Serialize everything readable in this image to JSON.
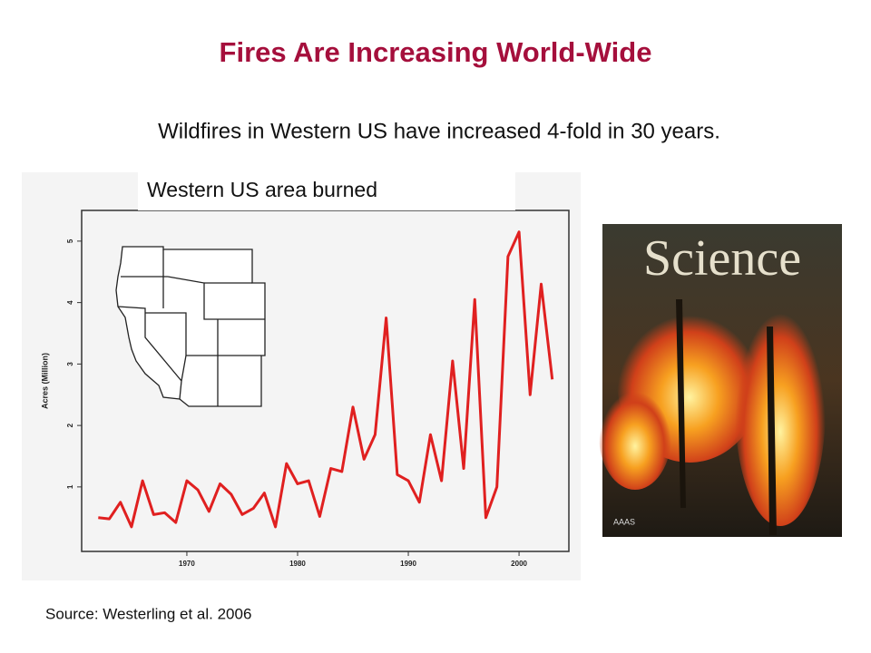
{
  "title": "Fires Are Increasing World-Wide",
  "subtitle": "Wildfires in Western US have increased 4-fold in 30 years.",
  "source": "Source: Westerling et al. 2006",
  "cover": {
    "title": "Science",
    "publisher": "AAAS"
  },
  "chart_data": {
    "type": "line",
    "title": "Western US area burned",
    "y_label": "Acres (Million)",
    "x": [
      1962,
      1963,
      1964,
      1965,
      1966,
      1967,
      1968,
      1969,
      1970,
      1971,
      1972,
      1973,
      1974,
      1975,
      1976,
      1977,
      1978,
      1979,
      1980,
      1981,
      1982,
      1983,
      1984,
      1985,
      1986,
      1987,
      1988,
      1989,
      1990,
      1991,
      1992,
      1993,
      1994,
      1995,
      1996,
      1997,
      1998,
      1999,
      2000,
      2001,
      2002,
      2003
    ],
    "values": [
      0.5,
      0.48,
      0.75,
      0.35,
      1.1,
      0.55,
      0.58,
      0.42,
      1.1,
      0.95,
      0.6,
      1.05,
      0.88,
      0.55,
      0.65,
      0.9,
      0.35,
      1.38,
      1.05,
      1.1,
      0.52,
      1.3,
      1.25,
      2.3,
      1.45,
      1.85,
      3.75,
      1.2,
      1.1,
      0.75,
      1.85,
      1.1,
      3.05,
      1.3,
      4.05,
      0.5,
      1.0,
      4.75,
      5.15,
      2.5,
      4.3,
      2.75
    ],
    "color": "#e02020",
    "xlim": [
      1960.5,
      2004.5
    ],
    "xticks": [
      1970,
      1980,
      1990,
      2000
    ],
    "ylim": [
      -0.05,
      5.5
    ],
    "yticks": [
      1,
      2,
      3,
      4,
      5
    ]
  }
}
